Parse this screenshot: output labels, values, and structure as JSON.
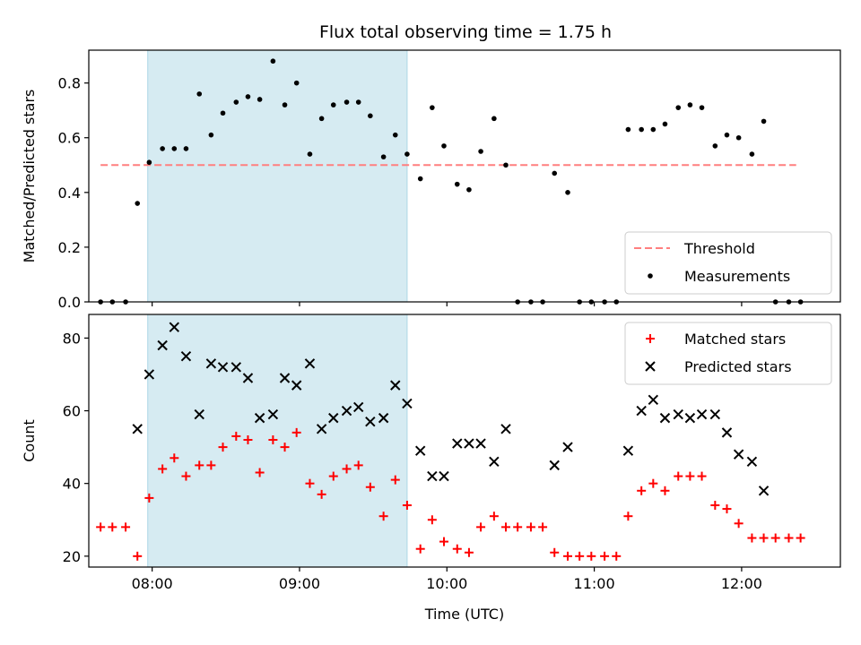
{
  "title": "Flux total observing time = 1.75 h",
  "colors": {
    "threshold": "#ff7f7f",
    "measurement": "#000000",
    "matched": "#ff0000",
    "predicted": "#000000",
    "shade": "#add8e6"
  },
  "chart_data": [
    {
      "type": "scatter",
      "ylabel": "Matched/Predicted stars",
      "xlim": [
        7.57,
        12.67
      ],
      "ylim": [
        0.0,
        0.92
      ],
      "yticks": [
        "0.0",
        "0.2",
        "0.4",
        "0.6",
        "0.8"
      ],
      "shaded_interval": [
        7.97,
        9.73
      ],
      "threshold": {
        "name": "Threshold",
        "value": 0.5,
        "x_range": [
          7.65,
          12.37
        ]
      },
      "legend": {
        "placement": "lower-right",
        "entries": [
          "Threshold",
          "Measurements"
        ]
      },
      "series": [
        {
          "name": "Measurements",
          "points": [
            [
              7.65,
              0.0
            ],
            [
              7.73,
              0.0
            ],
            [
              7.82,
              0.0
            ],
            [
              7.9,
              0.36
            ],
            [
              7.98,
              0.51
            ],
            [
              8.07,
              0.56
            ],
            [
              8.15,
              0.56
            ],
            [
              8.23,
              0.56
            ],
            [
              8.32,
              0.76
            ],
            [
              8.4,
              0.61
            ],
            [
              8.48,
              0.69
            ],
            [
              8.57,
              0.73
            ],
            [
              8.65,
              0.75
            ],
            [
              8.73,
              0.74
            ],
            [
              8.82,
              0.88
            ],
            [
              8.9,
              0.72
            ],
            [
              8.98,
              0.8
            ],
            [
              9.07,
              0.54
            ],
            [
              9.15,
              0.67
            ],
            [
              9.23,
              0.72
            ],
            [
              9.32,
              0.73
            ],
            [
              9.4,
              0.73
            ],
            [
              9.48,
              0.68
            ],
            [
              9.57,
              0.53
            ],
            [
              9.65,
              0.61
            ],
            [
              9.73,
              0.54
            ],
            [
              9.82,
              0.45
            ],
            [
              9.9,
              0.71
            ],
            [
              9.98,
              0.57
            ],
            [
              10.07,
              0.43
            ],
            [
              10.15,
              0.41
            ],
            [
              10.23,
              0.55
            ],
            [
              10.32,
              0.67
            ],
            [
              10.4,
              0.5
            ],
            [
              10.48,
              0.0
            ],
            [
              10.57,
              0.0
            ],
            [
              10.65,
              0.0
            ],
            [
              10.73,
              0.47
            ],
            [
              10.82,
              0.4
            ],
            [
              10.9,
              0.0
            ],
            [
              10.98,
              0.0
            ],
            [
              11.07,
              0.0
            ],
            [
              11.15,
              0.0
            ],
            [
              11.23,
              0.63
            ],
            [
              11.32,
              0.63
            ],
            [
              11.4,
              0.63
            ],
            [
              11.48,
              0.65
            ],
            [
              11.57,
              0.71
            ],
            [
              11.65,
              0.72
            ],
            [
              11.73,
              0.71
            ],
            [
              11.82,
              0.57
            ],
            [
              11.9,
              0.61
            ],
            [
              11.98,
              0.6
            ],
            [
              12.07,
              0.54
            ],
            [
              12.15,
              0.66
            ],
            [
              12.23,
              0.0
            ],
            [
              12.32,
              0.0
            ],
            [
              12.4,
              0.0
            ]
          ]
        }
      ]
    },
    {
      "type": "scatter",
      "ylabel": "Count",
      "xlabel": "Time (UTC)",
      "xlim": [
        7.57,
        12.67
      ],
      "ylim": [
        17,
        86.5
      ],
      "yticks": [
        "20",
        "40",
        "60",
        "80"
      ],
      "xticks": [
        {
          "value": 8,
          "label": "08:00"
        },
        {
          "value": 9,
          "label": "09:00"
        },
        {
          "value": 10,
          "label": "10:00"
        },
        {
          "value": 11,
          "label": "11:00"
        },
        {
          "value": 12,
          "label": "12:00"
        }
      ],
      "shaded_interval": [
        7.97,
        9.73
      ],
      "legend": {
        "placement": "upper-right",
        "entries": [
          "Matched stars",
          "Predicted stars"
        ]
      },
      "series": [
        {
          "name": "Matched stars",
          "marker": "plus",
          "points": [
            [
              7.65,
              28
            ],
            [
              7.73,
              28
            ],
            [
              7.82,
              28
            ],
            [
              7.9,
              20
            ],
            [
              7.98,
              36
            ],
            [
              8.07,
              44
            ],
            [
              8.15,
              47
            ],
            [
              8.23,
              42
            ],
            [
              8.32,
              45
            ],
            [
              8.4,
              45
            ],
            [
              8.48,
              50
            ],
            [
              8.57,
              53
            ],
            [
              8.65,
              52
            ],
            [
              8.73,
              43
            ],
            [
              8.82,
              52
            ],
            [
              8.9,
              50
            ],
            [
              8.98,
              54
            ],
            [
              9.07,
              40
            ],
            [
              9.15,
              37
            ],
            [
              9.23,
              42
            ],
            [
              9.32,
              44
            ],
            [
              9.4,
              45
            ],
            [
              9.48,
              39
            ],
            [
              9.57,
              31
            ],
            [
              9.65,
              41
            ],
            [
              9.73,
              34
            ],
            [
              9.82,
              22
            ],
            [
              9.9,
              30
            ],
            [
              9.98,
              24
            ],
            [
              10.07,
              22
            ],
            [
              10.15,
              21
            ],
            [
              10.23,
              28
            ],
            [
              10.32,
              31
            ],
            [
              10.4,
              28
            ],
            [
              10.48,
              28
            ],
            [
              10.57,
              28
            ],
            [
              10.65,
              28
            ],
            [
              10.73,
              21
            ],
            [
              10.82,
              20
            ],
            [
              10.9,
              20
            ],
            [
              10.98,
              20
            ],
            [
              11.07,
              20
            ],
            [
              11.15,
              20
            ],
            [
              11.23,
              31
            ],
            [
              11.32,
              38
            ],
            [
              11.4,
              40
            ],
            [
              11.48,
              38
            ],
            [
              11.57,
              42
            ],
            [
              11.65,
              42
            ],
            [
              11.73,
              42
            ],
            [
              11.82,
              34
            ],
            [
              11.9,
              33
            ],
            [
              11.98,
              29
            ],
            [
              12.07,
              25
            ],
            [
              12.15,
              25
            ],
            [
              12.23,
              25
            ],
            [
              12.32,
              25
            ],
            [
              12.4,
              25
            ]
          ]
        },
        {
          "name": "Predicted stars",
          "marker": "x",
          "points": [
            [
              7.9,
              55
            ],
            [
              7.98,
              70
            ],
            [
              8.07,
              78
            ],
            [
              8.15,
              83
            ],
            [
              8.23,
              75
            ],
            [
              8.32,
              59
            ],
            [
              8.4,
              73
            ],
            [
              8.48,
              72
            ],
            [
              8.57,
              72
            ],
            [
              8.65,
              69
            ],
            [
              8.73,
              58
            ],
            [
              8.82,
              59
            ],
            [
              8.9,
              69
            ],
            [
              8.98,
              67
            ],
            [
              9.07,
              73
            ],
            [
              9.15,
              55
            ],
            [
              9.23,
              58
            ],
            [
              9.32,
              60
            ],
            [
              9.4,
              61
            ],
            [
              9.48,
              57
            ],
            [
              9.57,
              58
            ],
            [
              9.65,
              67
            ],
            [
              9.73,
              62
            ],
            [
              9.82,
              49
            ],
            [
              9.9,
              42
            ],
            [
              9.98,
              42
            ],
            [
              10.07,
              51
            ],
            [
              10.15,
              51
            ],
            [
              10.23,
              51
            ],
            [
              10.32,
              46
            ],
            [
              10.4,
              55
            ],
            [
              10.73,
              45
            ],
            [
              10.82,
              50
            ],
            [
              11.23,
              49
            ],
            [
              11.32,
              60
            ],
            [
              11.4,
              63
            ],
            [
              11.48,
              58
            ],
            [
              11.57,
              59
            ],
            [
              11.65,
              58
            ],
            [
              11.73,
              59
            ],
            [
              11.82,
              59
            ],
            [
              11.9,
              54
            ],
            [
              11.98,
              48
            ],
            [
              12.07,
              46
            ],
            [
              12.15,
              38
            ]
          ]
        }
      ]
    }
  ]
}
